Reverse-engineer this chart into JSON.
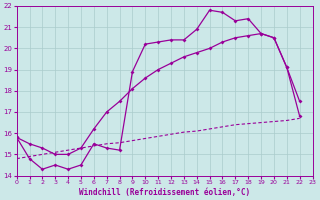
{
  "xlabel": "Windchill (Refroidissement éolien,°C)",
  "xlim": [
    0,
    23
  ],
  "ylim": [
    14,
    22
  ],
  "xticks": [
    0,
    1,
    2,
    3,
    4,
    5,
    6,
    7,
    8,
    9,
    10,
    11,
    12,
    13,
    14,
    15,
    16,
    17,
    18,
    19,
    20,
    21,
    22,
    23
  ],
  "yticks": [
    14,
    15,
    16,
    17,
    18,
    19,
    20,
    21,
    22
  ],
  "background_color": "#cce8e8",
  "grid_color": "#aacccc",
  "line_color": "#990099",
  "line1_x": [
    0,
    1,
    2,
    3,
    4,
    5,
    6,
    7,
    8,
    9,
    10,
    11,
    12,
    13,
    14,
    15,
    16,
    17,
    18,
    19,
    20,
    21,
    22
  ],
  "line1_y": [
    15.8,
    14.8,
    14.3,
    14.5,
    14.3,
    14.5,
    15.5,
    15.3,
    15.2,
    18.9,
    20.2,
    20.3,
    20.4,
    20.4,
    20.9,
    21.8,
    21.7,
    21.3,
    21.4,
    20.7,
    20.5,
    19.1,
    17.5
  ],
  "line2_x": [
    0,
    1,
    2,
    3,
    4,
    5,
    6,
    7,
    8,
    9,
    10,
    11,
    12,
    13,
    14,
    15,
    16,
    17,
    18,
    19,
    20,
    21,
    22
  ],
  "line2_y": [
    15.8,
    15.5,
    15.3,
    15.0,
    15.0,
    15.3,
    16.2,
    17.0,
    17.5,
    18.1,
    18.6,
    19.0,
    19.3,
    19.6,
    19.8,
    20.0,
    20.3,
    20.5,
    20.6,
    20.7,
    20.5,
    19.1,
    16.8
  ],
  "line3_x": [
    0,
    1,
    2,
    3,
    4,
    5,
    6,
    7,
    8,
    9,
    10,
    11,
    12,
    13,
    14,
    15,
    16,
    17,
    18,
    19,
    20,
    21,
    22
  ],
  "line3_y": [
    14.8,
    14.9,
    15.0,
    15.1,
    15.2,
    15.3,
    15.4,
    15.5,
    15.55,
    15.65,
    15.75,
    15.85,
    15.95,
    16.05,
    16.1,
    16.2,
    16.3,
    16.4,
    16.45,
    16.5,
    16.55,
    16.6,
    16.7
  ]
}
